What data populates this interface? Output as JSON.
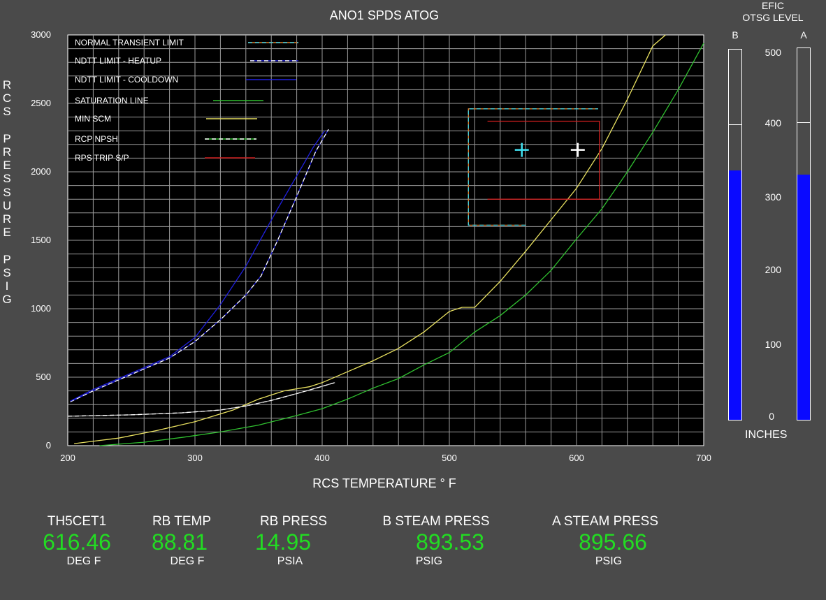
{
  "chart_data": {
    "type": "line",
    "title": "ANO1 SPDS ATOG",
    "xlabel": "RCS TEMPERATURE ° F",
    "ylabel": "RCS PRESSURE PSIG",
    "xlim": [
      200,
      700
    ],
    "ylim": [
      0,
      3000
    ],
    "x_ticks": [
      200,
      300,
      400,
      500,
      600,
      700
    ],
    "y_ticks": [
      0,
      500,
      1000,
      1500,
      2000,
      2500,
      3000
    ],
    "grid": true,
    "legend_position": "top-left",
    "series": [
      {
        "name": "NORMAL TRANSIENT LIMIT",
        "color": "#40d0e0",
        "style": "dashed-box",
        "x": [
          560,
          515,
          515,
          617,
          617
        ],
        "y": [
          1610,
          1610,
          2460,
          2460,
          2460
        ]
      },
      {
        "name": "NDTT LIMIT - HEATUP",
        "color": "#ffffff",
        "style": "dashed",
        "x": [
          202,
          220,
          240,
          260,
          280,
          300,
          320,
          340,
          352,
          365,
          380,
          395,
          405
        ],
        "y": [
          320,
          400,
          480,
          560,
          640,
          760,
          920,
          1100,
          1240,
          1500,
          1820,
          2150,
          2310
        ]
      },
      {
        "name": "NDTT LIMIT - COOLDOWN",
        "color": "#2020e0",
        "style": "solid",
        "x": [
          202,
          220,
          240,
          260,
          280,
          300,
          320,
          340,
          350,
          365,
          380,
          393,
          402
        ],
        "y": [
          325,
          410,
          490,
          570,
          650,
          790,
          1030,
          1310,
          1480,
          1730,
          1970,
          2180,
          2300
        ]
      },
      {
        "name": "SATURATION LINE",
        "color": "#30c030",
        "style": "solid",
        "x": [
          225,
          260,
          290,
          320,
          350,
          380,
          400,
          420,
          440,
          460,
          480,
          500,
          520,
          540,
          560,
          580,
          600,
          620,
          640,
          660,
          680,
          700
        ],
        "y": [
          0,
          25,
          60,
          100,
          150,
          220,
          270,
          340,
          420,
          490,
          590,
          680,
          830,
          950,
          1100,
          1280,
          1510,
          1730,
          2000,
          2290,
          2600,
          2940
        ]
      },
      {
        "name": "MIN SCM",
        "color": "#e8e060",
        "style": "solid",
        "x": [
          205,
          240,
          270,
          300,
          330,
          350,
          370,
          390,
          400,
          420,
          440,
          460,
          480,
          500,
          510,
          520,
          540,
          560,
          580,
          600,
          620,
          640,
          660,
          670
        ],
        "y": [
          15,
          55,
          110,
          175,
          260,
          340,
          400,
          430,
          460,
          540,
          620,
          710,
          830,
          980,
          1010,
          1010,
          1200,
          1420,
          1650,
          1880,
          2170,
          2530,
          2920,
          3000
        ]
      },
      {
        "name": "RCP NPSH",
        "color": "#a0f0a0",
        "style": "dashed",
        "x": [
          200,
          250,
          290,
          320,
          340,
          360,
          380,
          395,
          410
        ],
        "y": [
          215,
          225,
          240,
          260,
          290,
          330,
          380,
          420,
          460
        ]
      },
      {
        "name": "RPS TRIP S/P",
        "color": "#d02020",
        "style": "solid-box",
        "x": [
          530,
          618,
          618,
          530
        ],
        "y": [
          2370,
          2370,
          1800,
          1800
        ]
      }
    ],
    "markers": [
      {
        "name": "current point 1",
        "color": "#40e0f0",
        "x": 557,
        "y": 2160
      },
      {
        "name": "current point 2",
        "color": "#ffffff",
        "x": 601,
        "y": 2160
      }
    ]
  },
  "efic": {
    "title_line1": "EFIC",
    "title_line2": "OTSG LEVEL",
    "units": "INCHES",
    "scale_ticks": [
      "500",
      "400",
      "300",
      "200",
      "100",
      "0"
    ],
    "scale_max": 500,
    "bars": [
      {
        "label": "B",
        "level": 337
      },
      {
        "label": "A",
        "level": 330
      }
    ]
  },
  "readouts": [
    {
      "label": "TH5CET1",
      "value": "616.46",
      "unit": "DEG F"
    },
    {
      "label": "RB TEMP",
      "value": "88.81",
      "unit": "DEG F"
    },
    {
      "label": "RB PRESS",
      "value": "14.95",
      "unit": "PSIA"
    },
    {
      "label": "B STEAM PRESS",
      "value": "893.53",
      "unit": "PSIG"
    },
    {
      "label": "A STEAM PRESS",
      "value": "895.66",
      "unit": "PSIG"
    }
  ]
}
